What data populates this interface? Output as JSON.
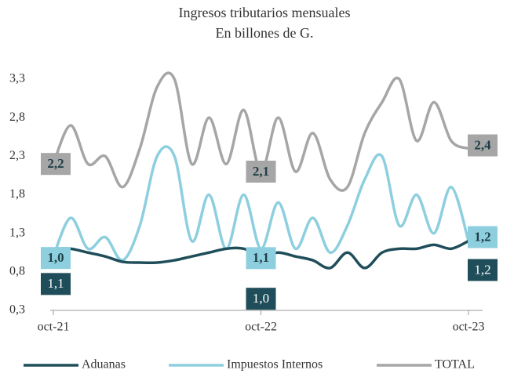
{
  "chart_data": {
    "type": "line",
    "title": "Ingresos tributarios mensuales",
    "subtitle": "En billones de G.",
    "categories": [
      "oct-21",
      null,
      null,
      null,
      null,
      null,
      null,
      null,
      null,
      null,
      null,
      null,
      "oct-22",
      null,
      null,
      null,
      null,
      null,
      null,
      null,
      null,
      null,
      null,
      null,
      "oct-23"
    ],
    "ylim": [
      0.3,
      3.3
    ],
    "yticks": [
      {
        "value": 0.3,
        "label": "0,3"
      },
      {
        "value": 0.8,
        "label": "0,8"
      },
      {
        "value": 1.3,
        "label": "1,3"
      },
      {
        "value": 1.8,
        "label": "1,8"
      },
      {
        "value": 2.3,
        "label": "2,3"
      },
      {
        "value": 2.8,
        "label": "2,8"
      },
      {
        "value": 3.3,
        "label": "3,3"
      }
    ],
    "grid": false,
    "legend": "bottom",
    "series": [
      {
        "name": "Aduanas",
        "color": "#1f4e5a",
        "values": [
          1.1,
          1.1,
          1.05,
          1.0,
          0.93,
          0.92,
          0.92,
          0.95,
          1.0,
          1.05,
          1.1,
          1.1,
          1.0,
          1.05,
          1.0,
          0.95,
          0.85,
          1.05,
          0.85,
          1.05,
          1.1,
          1.1,
          1.15,
          1.1,
          1.2
        ],
        "value_labels": [
          "1,1",
          null,
          null,
          null,
          null,
          null,
          null,
          null,
          null,
          null,
          null,
          null,
          "1,0",
          null,
          null,
          null,
          null,
          null,
          null,
          null,
          null,
          null,
          null,
          null,
          "1,2"
        ]
      },
      {
        "name": "Impuestos Internos",
        "color": "#8ecfdf",
        "values": [
          1.0,
          1.5,
          1.1,
          1.25,
          0.95,
          1.4,
          2.3,
          2.3,
          1.2,
          1.8,
          1.1,
          1.8,
          1.1,
          1.7,
          1.1,
          1.5,
          1.05,
          1.4,
          2.0,
          2.3,
          1.4,
          1.8,
          1.3,
          1.9,
          1.2
        ],
        "value_labels": [
          "1,0",
          null,
          null,
          null,
          null,
          null,
          null,
          null,
          null,
          null,
          null,
          null,
          "1,1",
          null,
          null,
          null,
          null,
          null,
          null,
          null,
          null,
          null,
          null,
          null,
          "1,2"
        ]
      },
      {
        "name": "TOTAL",
        "color": "#a6a6a6",
        "values": [
          2.2,
          2.7,
          2.2,
          2.3,
          1.9,
          2.4,
          3.2,
          3.3,
          2.2,
          2.8,
          2.2,
          2.9,
          2.1,
          2.8,
          2.1,
          2.6,
          2.0,
          1.9,
          2.6,
          3.0,
          3.3,
          2.5,
          3.0,
          2.5,
          2.4
        ],
        "value_labels": [
          "2,2",
          null,
          null,
          null,
          null,
          null,
          null,
          null,
          null,
          null,
          null,
          null,
          "2,1",
          null,
          null,
          null,
          null,
          null,
          null,
          null,
          null,
          null,
          null,
          null,
          "2,4"
        ]
      }
    ]
  }
}
